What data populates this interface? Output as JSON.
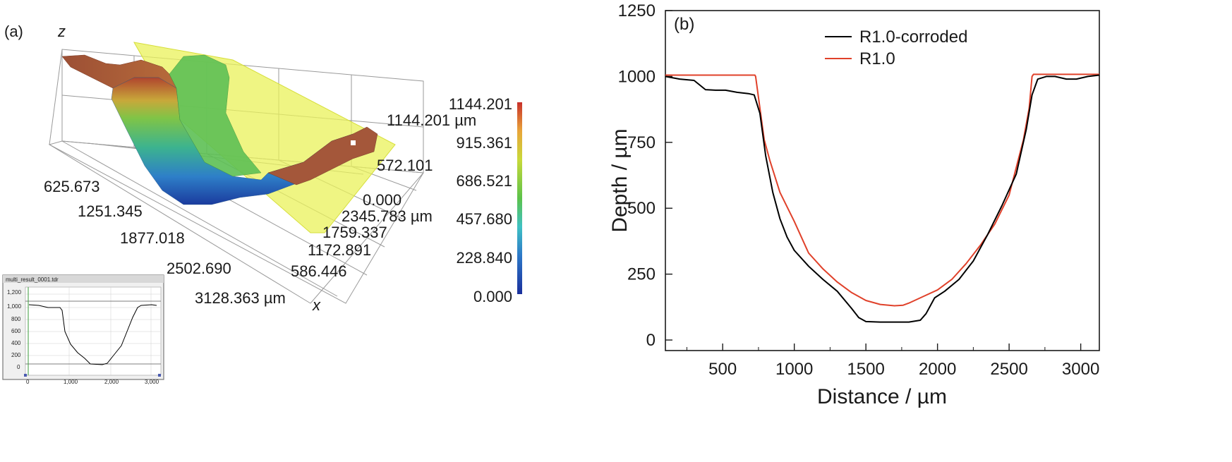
{
  "panel_a": {
    "label": "(a)",
    "z_axis_label": "z",
    "x_axis_label": "x",
    "x_ticks": [
      "625.673",
      "1251.345",
      "1877.018",
      "2502.690",
      "3128.363 µm"
    ],
    "y_ticks": [
      "2345.783 µm",
      "1759.337",
      "1172.891",
      "586.446"
    ],
    "z_ticks": [
      "1144.201 µm",
      "572.101",
      "0.000"
    ],
    "colorbar": {
      "ticks": [
        "1144.201",
        "915.361",
        "686.521",
        "457.680",
        "228.840",
        "0.000"
      ],
      "colors": [
        "#1a2f9c",
        "#2d78c8",
        "#3fc1c4",
        "#5cc24a",
        "#c8d93a",
        "#e9a53a",
        "#c8302a"
      ]
    },
    "inset": {
      "title": "multi_result_0001.tdr",
      "y_ticks": [
        "1,200",
        "1,000",
        "800",
        "600",
        "400",
        "200",
        "0"
      ],
      "x_ticks": [
        "0",
        "1,000",
        "2,000",
        "3,000"
      ]
    }
  },
  "chart_data": {
    "type": "line",
    "panel_label": "(b)",
    "xlabel": "Distance / µm",
    "ylabel": "Depth / µm",
    "xlim": [
      100,
      3130
    ],
    "ylim": [
      -40,
      1250
    ],
    "x_ticks": [
      500,
      1000,
      1500,
      2000,
      2500,
      3000
    ],
    "y_ticks": [
      0,
      250,
      500,
      750,
      1000,
      1250
    ],
    "legend_position": "top-center",
    "series": [
      {
        "name": "R1.0-corroded",
        "color": "#000000",
        "points": [
          [
            100,
            1000
          ],
          [
            200,
            990
          ],
          [
            300,
            985
          ],
          [
            380,
            950
          ],
          [
            450,
            948
          ],
          [
            520,
            948
          ],
          [
            600,
            940
          ],
          [
            680,
            935
          ],
          [
            720,
            930
          ],
          [
            760,
            860
          ],
          [
            800,
            700
          ],
          [
            850,
            560
          ],
          [
            900,
            460
          ],
          [
            950,
            390
          ],
          [
            1000,
            340
          ],
          [
            1100,
            280
          ],
          [
            1200,
            230
          ],
          [
            1300,
            185
          ],
          [
            1400,
            120
          ],
          [
            1450,
            85
          ],
          [
            1500,
            70
          ],
          [
            1600,
            68
          ],
          [
            1700,
            68
          ],
          [
            1800,
            68
          ],
          [
            1880,
            75
          ],
          [
            1920,
            100
          ],
          [
            1980,
            160
          ],
          [
            2050,
            185
          ],
          [
            2150,
            230
          ],
          [
            2250,
            300
          ],
          [
            2350,
            400
          ],
          [
            2450,
            510
          ],
          [
            2550,
            630
          ],
          [
            2620,
            800
          ],
          [
            2660,
            930
          ],
          [
            2700,
            990
          ],
          [
            2760,
            1000
          ],
          [
            2820,
            1000
          ],
          [
            2900,
            990
          ],
          [
            2970,
            990
          ],
          [
            3050,
            1000
          ],
          [
            3130,
            1005
          ]
        ]
      },
      {
        "name": "R1.0",
        "color": "#e0412a",
        "points": [
          [
            100,
            1005
          ],
          [
            500,
            1005
          ],
          [
            725,
            1005
          ],
          [
            730,
            1000
          ],
          [
            760,
            880
          ],
          [
            790,
            760
          ],
          [
            830,
            680
          ],
          [
            900,
            560
          ],
          [
            1000,
            450
          ],
          [
            1100,
            330
          ],
          [
            1200,
            270
          ],
          [
            1300,
            220
          ],
          [
            1400,
            180
          ],
          [
            1500,
            150
          ],
          [
            1600,
            135
          ],
          [
            1700,
            130
          ],
          [
            1760,
            132
          ],
          [
            1800,
            140
          ],
          [
            1900,
            165
          ],
          [
            2000,
            190
          ],
          [
            2100,
            230
          ],
          [
            2200,
            290
          ],
          [
            2300,
            360
          ],
          [
            2400,
            440
          ],
          [
            2500,
            550
          ],
          [
            2600,
            760
          ],
          [
            2640,
            880
          ],
          [
            2660,
            1000
          ],
          [
            2670,
            1008
          ],
          [
            2800,
            1008
          ],
          [
            3130,
            1008
          ]
        ]
      }
    ]
  }
}
